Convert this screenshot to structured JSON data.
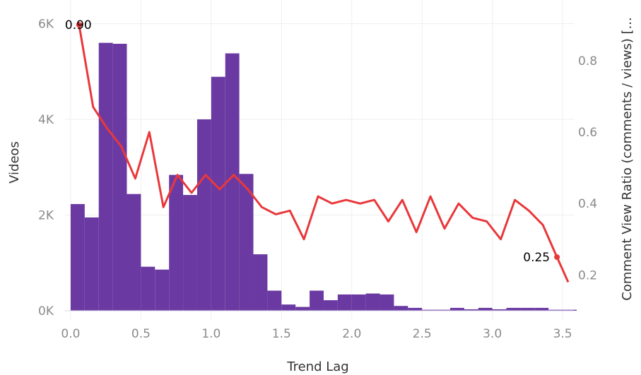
{
  "chart_data": {
    "type": "bar+line",
    "xlabel": "Trend Lag",
    "ylabel_left": "Videos",
    "ylabel_right": "Comment View Ratio (comments / views) [...",
    "x_ticks": [
      "0.0",
      "0.5",
      "1.0",
      "1.5",
      "2.0",
      "2.5",
      "3.0",
      "3.5"
    ],
    "x_tick_values": [
      0.0,
      0.5,
      1.0,
      1.5,
      2.0,
      2.5,
      3.0,
      3.5
    ],
    "y_left_ticks": [
      "0K",
      "2K",
      "4K",
      "6K"
    ],
    "y_left_tick_values": [
      0,
      2000,
      4000,
      6000
    ],
    "y_right_ticks": [
      "0.2",
      "0.4",
      "0.6",
      "0.8"
    ],
    "y_right_tick_values": [
      0.2,
      0.4,
      0.6,
      0.8
    ],
    "xlim": [
      -0.04,
      3.58
    ],
    "ylim_left": [
      0,
      6200
    ],
    "ylim_right": [
      0.1,
      0.93
    ],
    "grid": true,
    "bar_color": "#6a3aa2",
    "line_color": "#e8383b",
    "series": [
      {
        "kind": "bar",
        "bin_width": 0.1,
        "x": [
          0.0,
          0.1,
          0.2,
          0.3,
          0.4,
          0.5,
          0.6,
          0.7,
          0.8,
          0.9,
          1.0,
          1.1,
          1.2,
          1.3,
          1.4,
          1.5,
          1.6,
          1.7,
          1.8,
          1.9,
          2.0,
          2.1,
          2.2,
          2.3,
          2.4,
          2.5,
          2.6,
          2.7,
          2.8,
          2.9,
          3.0,
          3.1,
          3.2,
          3.3,
          3.4,
          3.5
        ],
        "values": [
          2230,
          1950,
          5600,
          5580,
          2440,
          920,
          860,
          2840,
          2420,
          4000,
          4890,
          5380,
          2860,
          1180,
          420,
          130,
          80,
          420,
          220,
          340,
          340,
          360,
          340,
          100,
          60,
          20,
          20,
          60,
          30,
          60,
          30,
          60,
          60,
          60,
          20,
          20
        ]
      },
      {
        "kind": "line",
        "x": [
          0.06,
          0.16,
          0.26,
          0.36,
          0.46,
          0.56,
          0.66,
          0.76,
          0.86,
          0.96,
          1.06,
          1.16,
          1.26,
          1.36,
          1.46,
          1.56,
          1.66,
          1.76,
          1.86,
          1.96,
          2.06,
          2.16,
          2.26,
          2.36,
          2.46,
          2.56,
          2.66,
          2.76,
          2.86,
          2.96,
          3.06,
          3.16,
          3.26,
          3.36,
          3.46,
          3.54
        ],
        "values": [
          0.9,
          0.67,
          0.61,
          0.56,
          0.47,
          0.6,
          0.39,
          0.48,
          0.43,
          0.48,
          0.44,
          0.48,
          0.44,
          0.39,
          0.37,
          0.38,
          0.3,
          0.42,
          0.4,
          0.41,
          0.4,
          0.41,
          0.35,
          0.41,
          0.32,
          0.42,
          0.33,
          0.4,
          0.36,
          0.35,
          0.3,
          0.41,
          0.38,
          0.34,
          0.25,
          0.18
        ]
      }
    ],
    "annotations": [
      {
        "text": "0.90",
        "point_index": 0,
        "side": "right"
      },
      {
        "text": "0.25",
        "point_index": 34,
        "side": "left"
      }
    ]
  }
}
